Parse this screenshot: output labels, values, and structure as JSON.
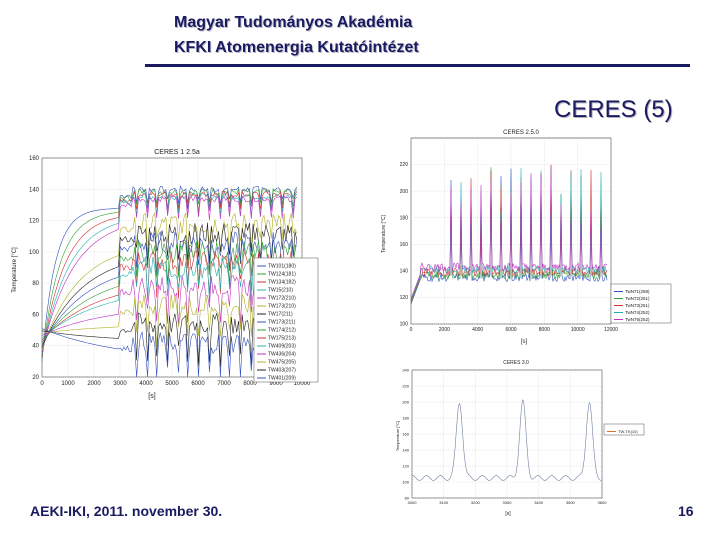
{
  "header": {
    "line1": "Magyar Tudományos Akadémia",
    "line2": "KFKI Atomenergia Kutatóintézet"
  },
  "section_title": "CERES (5)",
  "footer": {
    "left": "AEKI-IKI, 2011. november 30.",
    "page": "16"
  },
  "chart_data": [
    {
      "type": "line",
      "title": "CERES 1 2.5a",
      "xlabel": "[s]",
      "ylabel": "Temperature [°C]",
      "xlim": [
        0,
        10000
      ],
      "ylim": [
        20,
        160
      ],
      "x_ticks": [
        "0",
        "1000",
        "2000",
        "3000",
        "4000",
        "5000",
        "6000",
        "7000",
        "8000",
        "9000",
        "10000"
      ],
      "y_ticks": [
        "20",
        "40",
        "60",
        "80",
        "100",
        "120",
        "140",
        "160"
      ],
      "legend_position": "lower-right",
      "series": [
        {
          "name": "TW101(180)",
          "color": "#3050c0"
        },
        {
          "name": "TW124(181)",
          "color": "#30a030"
        },
        {
          "name": "TW134(182)",
          "color": "#d03030"
        },
        {
          "name": "TW15(210)",
          "color": "#20b0b0"
        },
        {
          "name": "TW172(210)",
          "color": "#c030c0"
        },
        {
          "name": "TW173(210)",
          "color": "#b0b020"
        },
        {
          "name": "TW17(211)",
          "color": "#202020"
        },
        {
          "name": "TW173(211)",
          "color": "#3050c0"
        },
        {
          "name": "TW174(212)",
          "color": "#30a030"
        },
        {
          "name": "TW175(213)",
          "color": "#d03030"
        },
        {
          "name": "TW409(203)",
          "color": "#20b0b0"
        },
        {
          "name": "TW436(204)",
          "color": "#c030c0"
        },
        {
          "name": "TW475(205)",
          "color": "#b0b020"
        },
        {
          "name": "TW403(207)",
          "color": "#202020"
        },
        {
          "name": "TW401(209)",
          "color": "#3050c0"
        }
      ]
    },
    {
      "type": "line",
      "title": "CERES 2.5.0",
      "xlabel": "[s]",
      "ylabel": "Temperature [°C]",
      "xlim": [
        0,
        12000
      ],
      "ylim": [
        100,
        240
      ],
      "x_ticks": [
        "0",
        "2000",
        "4000",
        "6000",
        "8000",
        "10000",
        "12000"
      ],
      "y_ticks": [
        "100",
        "120",
        "140",
        "160",
        "180",
        "200",
        "220"
      ],
      "legend_position": "lower-right",
      "series": [
        {
          "name": "TwN71(258)",
          "color": "#3050c0"
        },
        {
          "name": "TwN72(251)",
          "color": "#30a030"
        },
        {
          "name": "TwN73(251)",
          "color": "#d03030"
        },
        {
          "name": "TwN74(252)",
          "color": "#20b0b0"
        },
        {
          "name": "TwN76(252)",
          "color": "#c030c0"
        }
      ]
    },
    {
      "type": "line",
      "title": "CERES 3.0",
      "xlabel": "[s]",
      "ylabel": "Temperature [°C]",
      "xlim": [
        3000,
        3600
      ],
      "ylim": [
        80,
        240
      ],
      "x_ticks": [
        "3000",
        "3100",
        "3200",
        "3300",
        "3400",
        "3500",
        "3600"
      ],
      "y_ticks": [
        "80",
        "100",
        "120",
        "140",
        "160",
        "180",
        "200",
        "220",
        "240"
      ],
      "legend_position": "right",
      "series": [
        {
          "name": "TW-TK(10)",
          "color": "#e07020"
        }
      ]
    }
  ]
}
